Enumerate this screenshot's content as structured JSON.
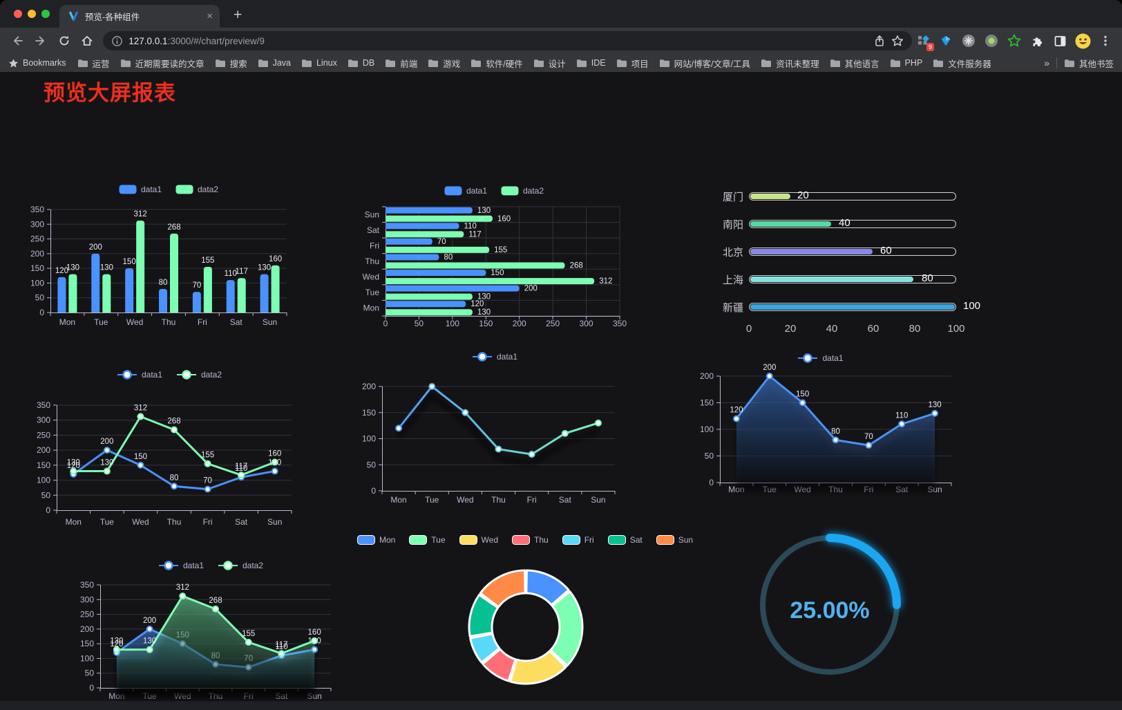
{
  "browser": {
    "tab_title": "预览-各种组件",
    "close_tab_label": "×",
    "new_tab_label": "+",
    "url_host": "127.0.0.1",
    "url_rest": ":3000/#/chart/preview/9",
    "extension_badge": "9",
    "bookmarks_label": "Bookmarks",
    "bookmarks": [
      "运营",
      "近期需要读的文章",
      "搜索",
      "Java",
      "Linux",
      "DB",
      "前端",
      "游戏",
      "软件/硬件",
      "设计",
      "IDE",
      "项目",
      "网站/博客/文章/工具",
      "资讯未整理",
      "其他语言",
      "PHP",
      "文件服务器"
    ],
    "bookmarks_overflow": "»",
    "other_bookmarks": "其他书签"
  },
  "page": {
    "title": "预览大屏报表",
    "title_color": "#ed2f1c",
    "background": "#141417"
  },
  "chart_data": [
    {
      "id": "bar-vertical",
      "type": "bar",
      "categories": [
        "Mon",
        "Tue",
        "Wed",
        "Thu",
        "Fri",
        "Sat",
        "Sun"
      ],
      "series": [
        {
          "name": "data1",
          "color": "#4992ff",
          "values": [
            120,
            200,
            150,
            80,
            70,
            110,
            130
          ]
        },
        {
          "name": "data2",
          "color": "#7cffb2",
          "values": [
            130,
            130,
            312,
            268,
            155,
            117,
            160
          ]
        }
      ],
      "ylim": [
        0,
        350
      ],
      "ystep": 50,
      "value_labels": true,
      "legend_position": "top",
      "grid": true
    },
    {
      "id": "bar-horizontal",
      "type": "hbar",
      "categories": [
        "Mon",
        "Tue",
        "Wed",
        "Thu",
        "Fri",
        "Sat",
        "Sun"
      ],
      "category_order_display": [
        "Sun",
        "Sat",
        "Fri",
        "Thu",
        "Wed",
        "Tue",
        "Mon"
      ],
      "series": [
        {
          "name": "data1",
          "color": "#4992ff",
          "values": [
            120,
            200,
            150,
            80,
            70,
            110,
            130
          ]
        },
        {
          "name": "data2",
          "color": "#7cffb2",
          "values": [
            130,
            130,
            312,
            268,
            155,
            117,
            160
          ]
        }
      ],
      "xlim": [
        0,
        350
      ],
      "xstep": 50,
      "value_labels": true,
      "legend_position": "top",
      "grid": true
    },
    {
      "id": "progress-bars",
      "type": "progress",
      "max": 100,
      "axis_ticks": [
        0,
        20,
        40,
        60,
        80,
        100
      ],
      "items": [
        {
          "label": "厦门",
          "value": 20,
          "color": "#c9e788"
        },
        {
          "label": "南阳",
          "value": 40,
          "color": "#55d9a7"
        },
        {
          "label": "北京",
          "value": 60,
          "color": "#8a87e8"
        },
        {
          "label": "上海",
          "value": 80,
          "color": "#86e3df"
        },
        {
          "label": "新疆",
          "value": 100,
          "color": "#3ca4dd"
        }
      ]
    },
    {
      "id": "line-two-series",
      "type": "line",
      "categories": [
        "Mon",
        "Tue",
        "Wed",
        "Thu",
        "Fri",
        "Sat",
        "Sun"
      ],
      "series": [
        {
          "name": "data1",
          "color": "#4992ff",
          "values": [
            120,
            200,
            150,
            80,
            70,
            110,
            130
          ]
        },
        {
          "name": "data2",
          "color": "#7cffb2",
          "values": [
            130,
            130,
            312,
            268,
            155,
            117,
            160
          ]
        }
      ],
      "ylim": [
        0,
        350
      ],
      "ystep": 50,
      "value_labels": true,
      "legend_position": "top",
      "grid": true
    },
    {
      "id": "line-gradient",
      "type": "line",
      "categories": [
        "Mon",
        "Tue",
        "Wed",
        "Thu",
        "Fri",
        "Sat",
        "Sun"
      ],
      "series": [
        {
          "name": "data1",
          "gradient": [
            "#4992ff",
            "#7cffb2"
          ],
          "values": [
            120,
            200,
            150,
            80,
            70,
            110,
            130
          ]
        }
      ],
      "ylim": [
        0,
        200
      ],
      "ystep": 50,
      "value_labels": false,
      "shadow": true,
      "legend_position": "top",
      "grid": true
    },
    {
      "id": "line-area",
      "type": "line",
      "categories": [
        "Mon",
        "Tue",
        "Wed",
        "Thu",
        "Fri",
        "Sat",
        "Sun"
      ],
      "series": [
        {
          "name": "data1",
          "color": "#4992ff",
          "area": true,
          "values": [
            120,
            200,
            150,
            80,
            70,
            110,
            130
          ]
        }
      ],
      "ylim": [
        0,
        200
      ],
      "ystep": 50,
      "value_labels": true,
      "shadow": true,
      "legend_position": "top",
      "grid": true
    },
    {
      "id": "line-two-area",
      "type": "line",
      "categories": [
        "Mon",
        "Tue",
        "Wed",
        "Thu",
        "Fri",
        "Sat",
        "Sun"
      ],
      "series": [
        {
          "name": "data1",
          "color": "#4992ff",
          "area": true,
          "values": [
            120,
            200,
            150,
            80,
            70,
            110,
            130
          ]
        },
        {
          "name": "data2",
          "color": "#7cffb2",
          "area": true,
          "values": [
            130,
            130,
            312,
            268,
            155,
            117,
            160
          ]
        }
      ],
      "ylim": [
        0,
        350
      ],
      "ystep": 50,
      "value_labels": true,
      "shadow": true,
      "legend_position": "top",
      "grid": true
    },
    {
      "id": "donut",
      "type": "pie",
      "labels": [
        "Mon",
        "Tue",
        "Wed",
        "Thu",
        "Fri",
        "Sat",
        "Sun"
      ],
      "values": [
        120,
        200,
        150,
        80,
        70,
        110,
        130
      ],
      "colors": [
        "#4992ff",
        "#7cffb2",
        "#fddd60",
        "#ff6e76",
        "#58d9f9",
        "#05c091",
        "#ff8a45"
      ],
      "inner_radius_ratio": 0.6,
      "border_color": "#ffffff",
      "legend_position": "top"
    },
    {
      "id": "gauge",
      "type": "gauge",
      "value_label": "25.00%",
      "percent": 25,
      "color": "#1ba6f2",
      "track_color": "#2b4a57",
      "text_color": "#51b2f0"
    }
  ]
}
